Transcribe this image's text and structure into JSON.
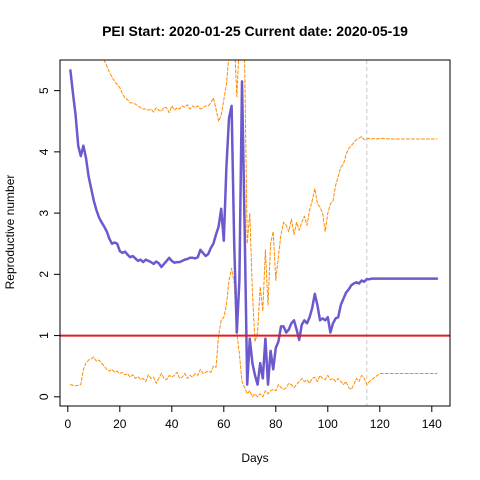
{
  "chart_data": {
    "type": "line",
    "title": "PEI Start:  2020-01-25   Current date:  2020-05-19",
    "xlabel": "Days",
    "ylabel": "Reproductive number",
    "xlim": [
      -3,
      147
    ],
    "ylim": [
      -0.15,
      5.5
    ],
    "xticks": [
      0,
      20,
      40,
      60,
      80,
      100,
      120,
      140
    ],
    "yticks": [
      0,
      1,
      2,
      3,
      4,
      5
    ],
    "grid": false,
    "reference_lines": {
      "horizontal": {
        "y": 1,
        "color": "#e41a1c"
      },
      "vertical": {
        "x": 115,
        "color": "#c8c8c8"
      }
    },
    "series": [
      {
        "role": "estimate",
        "color": "#6a5acd",
        "style": "solid",
        "x": [
          1,
          2,
          3,
          4,
          5,
          6,
          7,
          8,
          9,
          10,
          11,
          12,
          13,
          14,
          15,
          16,
          17,
          18,
          19,
          20,
          21,
          22,
          23,
          24,
          25,
          26,
          27,
          28,
          29,
          30,
          31,
          32,
          33,
          34,
          35,
          36,
          37,
          38,
          39,
          40,
          41,
          42,
          43,
          44,
          45,
          46,
          47,
          48,
          49,
          50,
          51,
          52,
          53,
          54,
          55,
          56,
          57,
          58,
          59,
          60,
          61,
          62,
          63,
          64,
          65,
          66,
          67,
          68,
          69,
          70,
          71,
          72,
          73,
          74,
          75,
          76,
          77,
          78,
          79,
          80,
          81,
          82,
          83,
          84,
          85,
          86,
          87,
          88,
          89,
          90,
          91,
          92,
          93,
          94,
          95,
          96,
          97,
          98,
          99,
          100,
          101,
          102,
          103,
          104,
          105,
          106,
          107,
          108,
          109,
          110,
          111,
          112,
          113,
          114,
          115,
          116,
          117,
          118,
          119,
          120,
          125,
          130,
          135,
          142
        ],
        "y": [
          5.33,
          4.95,
          4.6,
          4.1,
          3.93,
          4.1,
          3.9,
          3.6,
          3.4,
          3.2,
          3.05,
          2.93,
          2.85,
          2.78,
          2.7,
          2.58,
          2.5,
          2.52,
          2.5,
          2.38,
          2.35,
          2.37,
          2.32,
          2.28,
          2.3,
          2.26,
          2.22,
          2.24,
          2.2,
          2.24,
          2.22,
          2.2,
          2.17,
          2.21,
          2.18,
          2.12,
          2.17,
          2.22,
          2.27,
          2.22,
          2.19,
          2.2,
          2.2,
          2.22,
          2.24,
          2.25,
          2.27,
          2.27,
          2.26,
          2.28,
          2.4,
          2.35,
          2.3,
          2.33,
          2.43,
          2.5,
          2.65,
          2.78,
          3.07,
          2.55,
          3.75,
          4.55,
          4.75,
          2.5,
          1.05,
          1.9,
          5.15,
          2.8,
          0.2,
          0.95,
          0.55,
          0.35,
          0.2,
          0.55,
          0.3,
          0.95,
          0.2,
          0.75,
          0.45,
          0.8,
          0.9,
          1.15,
          1.15,
          1.05,
          1.1,
          1.2,
          1.25,
          1.1,
          0.93,
          1.18,
          1.25,
          1.2,
          1.3,
          1.45,
          1.68,
          1.5,
          1.25,
          1.28,
          1.25,
          1.3,
          1.05,
          1.2,
          1.28,
          1.3,
          1.5,
          1.6,
          1.7,
          1.75,
          1.82,
          1.85,
          1.87,
          1.85,
          1.9,
          1.88,
          1.92,
          1.92,
          1.93,
          1.93,
          1.93,
          1.93,
          1.93,
          1.93,
          1.93,
          1.93
        ]
      },
      {
        "role": "upper-bound",
        "color": "#ff8c00",
        "style": "dashed",
        "x": [
          9,
          10,
          11,
          12,
          13,
          14,
          15,
          16,
          17,
          18,
          19,
          20,
          21,
          22,
          23,
          24,
          25,
          26,
          27,
          28,
          29,
          30,
          31,
          32,
          33,
          34,
          35,
          36,
          37,
          38,
          39,
          40,
          41,
          42,
          43,
          44,
          45,
          46,
          47,
          48,
          49,
          50,
          51,
          52,
          53,
          54,
          55,
          56,
          57,
          58,
          59,
          60,
          61,
          62,
          63,
          64,
          65,
          66,
          67,
          68,
          69,
          70,
          71,
          72,
          73,
          74,
          75,
          76,
          77,
          78,
          79,
          80,
          81,
          82,
          83,
          84,
          85,
          86,
          87,
          88,
          89,
          90,
          91,
          92,
          93,
          94,
          95,
          96,
          97,
          98,
          99,
          100,
          101,
          102,
          103,
          104,
          105,
          106,
          107,
          108,
          109,
          110,
          111,
          112,
          113,
          114,
          115,
          116,
          117,
          118,
          119,
          120,
          125,
          130,
          135,
          142
        ],
        "y": [
          6.2,
          6.0,
          5.85,
          5.7,
          5.6,
          5.5,
          5.4,
          5.3,
          5.22,
          5.15,
          5.1,
          5.05,
          4.95,
          4.88,
          4.85,
          4.8,
          4.8,
          4.78,
          4.75,
          4.72,
          4.7,
          4.7,
          4.68,
          4.7,
          4.65,
          4.72,
          4.68,
          4.66,
          4.73,
          4.72,
          4.64,
          4.75,
          4.68,
          4.72,
          4.7,
          4.75,
          4.73,
          4.77,
          4.7,
          4.75,
          4.72,
          4.75,
          4.7,
          4.72,
          4.75,
          4.75,
          4.8,
          4.88,
          4.7,
          4.5,
          4.6,
          4.85,
          5.1,
          5.6,
          5.75,
          5.9,
          4.9,
          5.8,
          6.0,
          5.5,
          2.5,
          3.0,
          1.7,
          0.9,
          1.05,
          1.8,
          1.4,
          2.4,
          1.5,
          2.5,
          2.7,
          1.9,
          2.3,
          2.65,
          2.85,
          2.8,
          2.7,
          2.9,
          2.65,
          2.85,
          2.72,
          2.85,
          2.95,
          2.8,
          3.05,
          3.2,
          3.4,
          3.15,
          3.1,
          3.0,
          2.7,
          3.0,
          3.15,
          3.2,
          3.45,
          3.6,
          3.75,
          3.8,
          3.95,
          4.05,
          4.1,
          4.15,
          4.2,
          4.22,
          4.25,
          4.2,
          4.21,
          4.22,
          4.21,
          4.22,
          4.21,
          4.22,
          4.21,
          4.21,
          4.21,
          4.21
        ]
      },
      {
        "role": "lower-bound",
        "color": "#ff8c00",
        "style": "dashed",
        "x": [
          1,
          3,
          5,
          6,
          7,
          8,
          9,
          10,
          11,
          12,
          13,
          14,
          15,
          16,
          17,
          18,
          19,
          20,
          21,
          22,
          23,
          24,
          25,
          26,
          27,
          28,
          29,
          30,
          31,
          32,
          33,
          34,
          35,
          36,
          37,
          38,
          39,
          40,
          41,
          42,
          43,
          44,
          45,
          46,
          47,
          48,
          49,
          50,
          51,
          52,
          53,
          54,
          55,
          56,
          57,
          58,
          59,
          60,
          61,
          62,
          63,
          64,
          65,
          66,
          67,
          68,
          69,
          70,
          71,
          72,
          73,
          74,
          75,
          76,
          77,
          78,
          79,
          80,
          81,
          82,
          83,
          84,
          85,
          86,
          87,
          88,
          89,
          90,
          91,
          92,
          93,
          94,
          95,
          96,
          97,
          98,
          99,
          100,
          101,
          102,
          103,
          104,
          105,
          106,
          107,
          108,
          109,
          110,
          111,
          112,
          113,
          114,
          115,
          116,
          120,
          125,
          130,
          135,
          142
        ],
        "y": [
          0.2,
          0.18,
          0.2,
          0.45,
          0.55,
          0.6,
          0.62,
          0.65,
          0.58,
          0.6,
          0.55,
          0.5,
          0.45,
          0.42,
          0.45,
          0.4,
          0.42,
          0.38,
          0.4,
          0.36,
          0.38,
          0.32,
          0.36,
          0.3,
          0.33,
          0.28,
          0.3,
          0.25,
          0.36,
          0.3,
          0.32,
          0.22,
          0.3,
          0.38,
          0.3,
          0.28,
          0.35,
          0.32,
          0.35,
          0.4,
          0.3,
          0.32,
          0.38,
          0.3,
          0.35,
          0.32,
          0.38,
          0.35,
          0.45,
          0.38,
          0.4,
          0.42,
          0.4,
          0.5,
          0.48,
          1.0,
          1.25,
          1.3,
          1.5,
          1.9,
          2.1,
          1.85,
          1.05,
          0.7,
          0.25,
          0.15,
          0.05,
          0.1,
          0.0,
          0.05,
          0.0,
          0.05,
          0.0,
          0.1,
          0.05,
          0.1,
          0.12,
          0.1,
          0.2,
          0.15,
          0.12,
          0.15,
          0.22,
          0.2,
          0.15,
          0.2,
          0.25,
          0.3,
          0.25,
          0.28,
          0.22,
          0.3,
          0.32,
          0.25,
          0.35,
          0.3,
          0.28,
          0.35,
          0.28,
          0.3,
          0.25,
          0.3,
          0.25,
          0.2,
          0.25,
          0.15,
          0.12,
          0.2,
          0.3,
          0.25,
          0.35,
          0.3,
          0.2,
          0.25,
          0.38,
          0.38,
          0.38,
          0.38,
          0.38
        ]
      }
    ]
  }
}
